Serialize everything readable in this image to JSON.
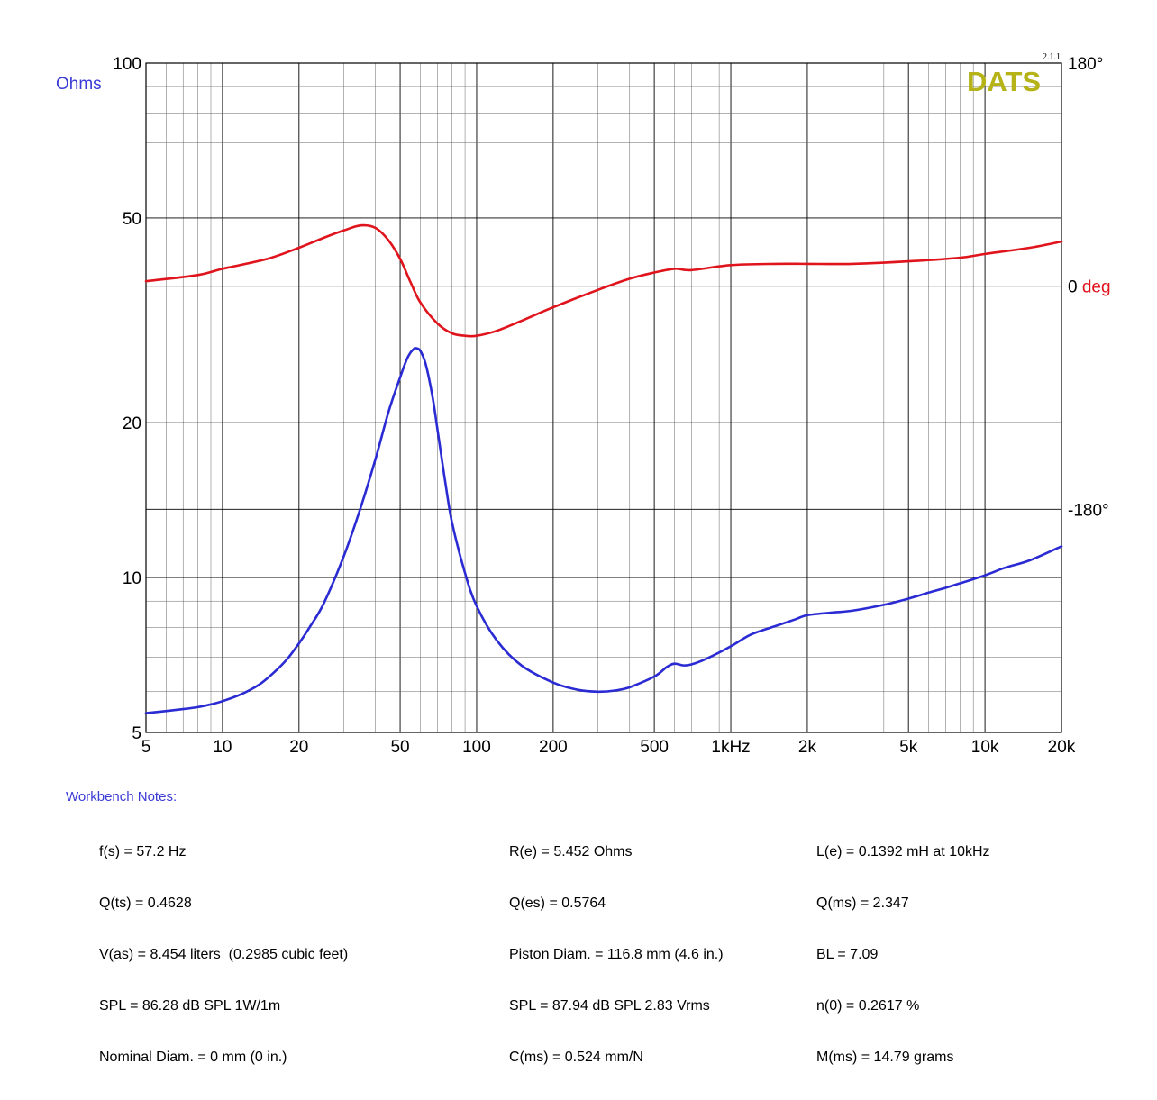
{
  "chart_data": {
    "type": "line",
    "title": "",
    "xlabel": "",
    "ylabel": "Ohms",
    "x_scale": "log",
    "y_scale": "log",
    "xlim": [
      5,
      20000
    ],
    "ylim": [
      5,
      100
    ],
    "phase_lim": [
      -360,
      180
    ],
    "grid": true,
    "x_ticks": [
      {
        "value": 5,
        "label": "5"
      },
      {
        "value": 10,
        "label": "10"
      },
      {
        "value": 20,
        "label": "20"
      },
      {
        "value": 50,
        "label": "50"
      },
      {
        "value": 100,
        "label": "100"
      },
      {
        "value": 200,
        "label": "200"
      },
      {
        "value": 500,
        "label": "500"
      },
      {
        "value": 1000,
        "label": "1kHz"
      },
      {
        "value": 2000,
        "label": "2k"
      },
      {
        "value": 5000,
        "label": "5k"
      },
      {
        "value": 10000,
        "label": "10k"
      },
      {
        "value": 20000,
        "label": "20k"
      }
    ],
    "y_ticks": [
      {
        "value": 5,
        "label": "5"
      },
      {
        "value": 10,
        "label": "10"
      },
      {
        "value": 20,
        "label": "20"
      },
      {
        "value": 50,
        "label": "50"
      },
      {
        "value": 100,
        "label": "100"
      }
    ],
    "phase_ticks": [
      {
        "value": 180,
        "label": "180°"
      },
      {
        "value": -180,
        "label": "-180°"
      }
    ],
    "phase_zero": {
      "value": 0,
      "number": "0",
      "unit": "deg"
    },
    "series": [
      {
        "color": "#2b2bd4",
        "axis": "impedance",
        "x": [
          5,
          7,
          8,
          9,
          10,
          12,
          14,
          16,
          18,
          20,
          22,
          25,
          30,
          35,
          40,
          45,
          50,
          53,
          55,
          57,
          57.2,
          58,
          60,
          63,
          67,
          70,
          75,
          80,
          90,
          100,
          120,
          150,
          200,
          250,
          300,
          350,
          400,
          500,
          560,
          600,
          650,
          700,
          800,
          1000,
          1200,
          1500,
          1800,
          2000,
          2500,
          3000,
          4000,
          5000,
          6000,
          7000,
          8000,
          10000,
          12000,
          15000,
          20000
        ],
        "y": [
          5.45,
          5.55,
          5.6,
          5.67,
          5.75,
          5.95,
          6.2,
          6.55,
          6.95,
          7.45,
          8.0,
          8.9,
          11.0,
          13.7,
          17.0,
          21.0,
          24.5,
          26.5,
          27.4,
          27.9,
          27.9,
          27.9,
          27.6,
          26.0,
          22.5,
          19.5,
          15.5,
          12.8,
          10.2,
          8.8,
          7.55,
          6.75,
          6.25,
          6.05,
          6.0,
          6.03,
          6.12,
          6.42,
          6.7,
          6.8,
          6.75,
          6.78,
          6.95,
          7.35,
          7.75,
          8.05,
          8.3,
          8.45,
          8.55,
          8.62,
          8.85,
          9.1,
          9.35,
          9.55,
          9.75,
          10.1,
          10.45,
          10.8,
          11.5
        ]
      },
      {
        "color": "#e0141c",
        "axis": "phase",
        "x": [
          5,
          8,
          10,
          15,
          20,
          25,
          30,
          35,
          40,
          45,
          50,
          55,
          60,
          70,
          80,
          90,
          100,
          120,
          150,
          200,
          300,
          400,
          500,
          600,
          700,
          1000,
          1500,
          2000,
          3000,
          5000,
          8000,
          10000,
          15000,
          20000
        ],
        "y": [
          4,
          9,
          14,
          22,
          31,
          39,
          45,
          49,
          47,
          37,
          22,
          3,
          -13,
          -30,
          -38,
          -40,
          -40,
          -36,
          -28,
          -17,
          -3,
          6,
          11,
          14,
          13,
          17,
          18,
          18,
          18,
          20,
          23,
          26,
          31,
          36
        ]
      }
    ]
  },
  "logo": {
    "text": "DATS",
    "version": "2.1.1",
    "color": "#b5b317"
  },
  "notes": {
    "title": "Workbench Notes:",
    "col1": [
      "f(s) = 57.2 Hz",
      "Q(ts) = 0.4628",
      "V(as) = 8.454 liters  (0.2985 cubic feet)",
      "SPL = 86.28 dB SPL 1W/1m",
      "Nominal Diam. = 0 mm (0 in.)"
    ],
    "col2": [
      "R(e) = 5.452 Ohms",
      "Q(es) = 0.5764",
      "Piston Diam. = 116.8 mm (4.6 in.)",
      "SPL = 87.94 dB SPL 2.83 Vrms",
      "C(ms) = 0.524 mm/N"
    ],
    "col3": [
      "L(e) = 0.1392 mH at 10kHz",
      "Q(ms) = 2.347",
      "BL = 7.09",
      "n(0) = 0.2617 %",
      "M(ms) = 14.79 grams"
    ]
  }
}
